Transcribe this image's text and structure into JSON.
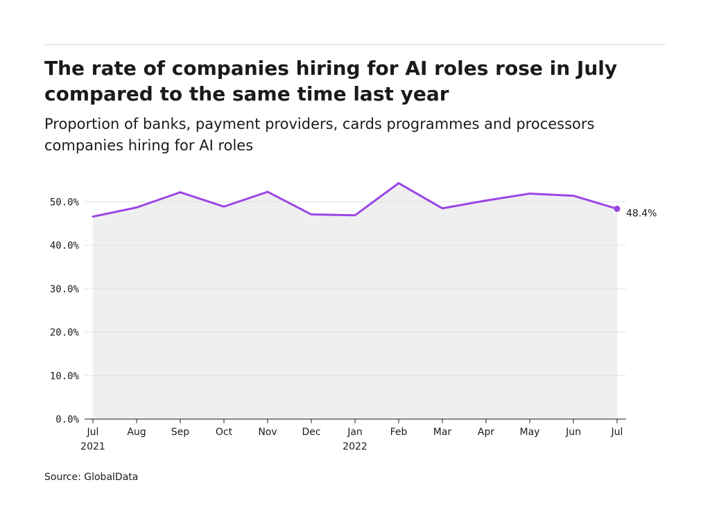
{
  "title": "The rate of companies hiring for AI roles rose in July compared to the same time last year",
  "subtitle": "Proportion of banks, payment providers, cards programmes and processors companies hiring for AI roles",
  "source": "Source: GlobalData",
  "colors": {
    "line": "#9b45e4",
    "area": "#efeff0",
    "grid": "#e0e0e0",
    "axis": "#1a1a1a"
  },
  "chart_data": {
    "type": "area",
    "title": "The rate of companies hiring for AI roles rose in July compared to the same time last year",
    "subtitle": "Proportion of banks, payment providers, cards programmes and processors companies hiring for AI roles",
    "x": [
      "Jul 2021",
      "Aug 2021",
      "Sep 2021",
      "Oct 2021",
      "Nov 2021",
      "Dec 2021",
      "Jan 2022",
      "Feb 2022",
      "Mar 2022",
      "Apr 2022",
      "May 2022",
      "Jun 2022",
      "Jul 2022"
    ],
    "x_tick_labels": [
      [
        "Jul",
        "2021"
      ],
      [
        "Aug",
        ""
      ],
      [
        "Sep",
        ""
      ],
      [
        "Oct",
        ""
      ],
      [
        "Nov",
        ""
      ],
      [
        "Dec",
        ""
      ],
      [
        "Jan",
        "2022"
      ],
      [
        "Feb",
        ""
      ],
      [
        "Mar",
        ""
      ],
      [
        "Apr",
        ""
      ],
      [
        "May",
        ""
      ],
      [
        "Jun",
        ""
      ],
      [
        "Jul",
        ""
      ]
    ],
    "series": [
      {
        "values": [
          46.6,
          48.7,
          52.2,
          48.9,
          52.3,
          47.1,
          46.9,
          54.3,
          48.5,
          50.3,
          51.9,
          51.4,
          48.4
        ]
      }
    ],
    "y_ticks": [
      "0.0%",
      "10.0%",
      "20.0%",
      "30.0%",
      "40.0%",
      "50.0%"
    ],
    "ylim": [
      0,
      55
    ],
    "grid": true,
    "end_label": "48.4%",
    "xlabel": "",
    "ylabel": ""
  }
}
